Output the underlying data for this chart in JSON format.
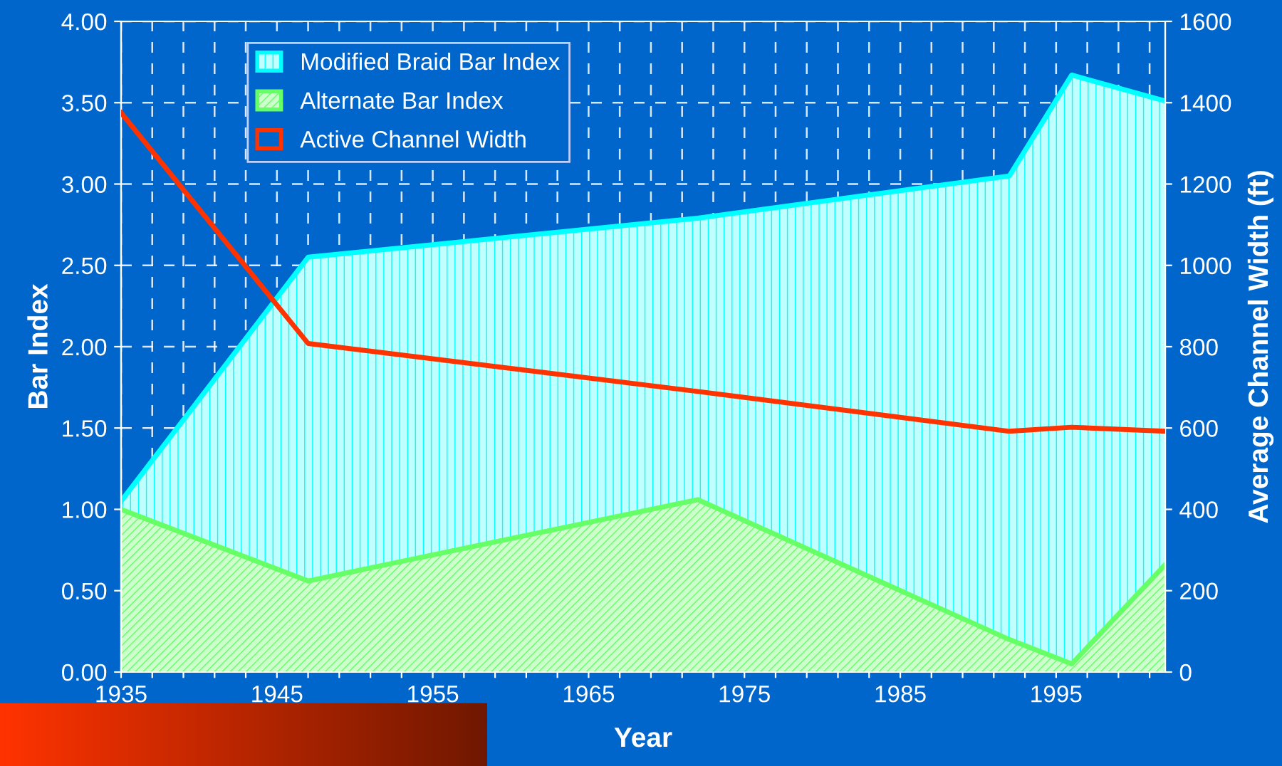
{
  "chart_data": {
    "type": "area",
    "xlabel": "Year",
    "ylabel": "Bar Index",
    "y2label": "Average Channel Width (ft)",
    "x": [
      1935,
      1947,
      1972,
      1992,
      1996,
      2002
    ],
    "series": [
      {
        "name": "Modified Braid Bar Index",
        "color": "#00ffff",
        "values": [
          1.05,
          2.55,
          2.79,
          3.05,
          3.67,
          3.51
        ]
      },
      {
        "name": "Alternate Bar Index",
        "color": "#66ff66",
        "values": [
          1.0,
          0.56,
          1.06,
          0.2,
          0.05,
          0.66
        ]
      },
      {
        "name": "Active Channel Width",
        "type": "line",
        "axis": "y2",
        "color": "#ff3300",
        "values": [
          1375,
          808,
          690,
          592,
          602,
          592
        ]
      }
    ],
    "xlim": [
      1935,
      2002
    ],
    "xticks": [
      1935,
      {
        "value": 1937,
        "label": null
      },
      {
        "value": 1939,
        "label": null
      },
      {
        "value": 1941,
        "label": null
      },
      {
        "value": 1943,
        "label": null
      },
      1945,
      {
        "value": 1947,
        "label": null
      },
      {
        "value": 1949,
        "label": null
      },
      {
        "value": 1951,
        "label": null
      },
      {
        "value": 1953,
        "label": null
      },
      1955,
      {
        "value": 1957,
        "label": null
      },
      {
        "value": 1959,
        "label": null
      },
      {
        "value": 1961,
        "label": null
      },
      {
        "value": 1963,
        "label": null
      },
      1965,
      {
        "value": 1967,
        "label": null
      },
      {
        "value": 1969,
        "label": null
      },
      {
        "value": 1971,
        "label": null
      },
      {
        "value": 1973,
        "label": null
      },
      1975,
      {
        "value": 1977,
        "label": null
      },
      {
        "value": 1979,
        "label": null
      },
      {
        "value": 1981,
        "label": null
      },
      {
        "value": 1983,
        "label": null
      },
      1985,
      {
        "value": 1987,
        "label": null
      },
      {
        "value": 1989,
        "label": null
      },
      {
        "value": 1991,
        "label": null
      },
      {
        "value": 1993,
        "label": null
      },
      1995,
      {
        "value": 1997,
        "label": null
      },
      {
        "value": 1999,
        "label": null
      },
      {
        "value": 2001,
        "label": null
      }
    ],
    "ylim": [
      0,
      4
    ],
    "yticks": [
      {
        "value": 0,
        "label": "0.00"
      },
      {
        "value": 0.5,
        "label": "0.50"
      },
      {
        "value": 1,
        "label": "1.00"
      },
      {
        "value": 1.5,
        "label": "1.50"
      },
      {
        "value": 2,
        "label": "2.00"
      },
      {
        "value": 2.5,
        "label": "2.50"
      },
      {
        "value": 3,
        "label": "3.00"
      },
      {
        "value": 3.5,
        "label": "3.50"
      },
      {
        "value": 4,
        "label": "4.00"
      }
    ],
    "y2lim": [
      0,
      1600
    ],
    "y2ticks": [
      0,
      200,
      400,
      600,
      800,
      1000,
      1200,
      1400,
      1600
    ],
    "grid": true,
    "legend": "top left",
    "line_style": "solid",
    "marker": "none"
  }
}
